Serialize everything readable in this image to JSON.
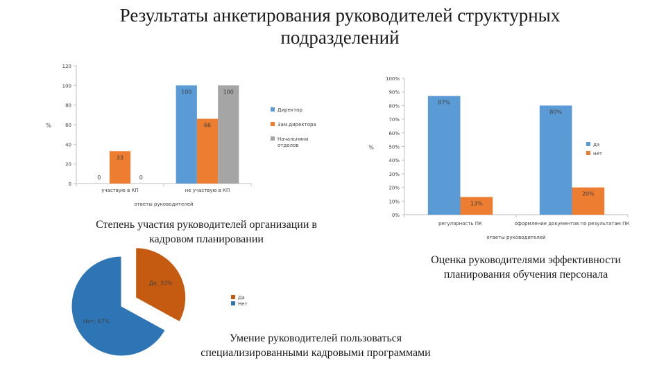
{
  "title_lines": [
    "Результаты анкетирования руководителей структурных",
    "подразделений"
  ],
  "captions": {
    "chart1": [
      "Степень участия руководителей организации в",
      "кадровом планировании"
    ],
    "chart2": [
      "Оценка руководителями эффективности",
      "планирования обучения персонала"
    ],
    "chart3": [
      "Умение руководителей пользоваться",
      "специализированными кадровыми программами"
    ]
  },
  "chart_data": [
    {
      "type": "bar",
      "categories": [
        "участвую в КП",
        "не участвую в КП"
      ],
      "series": [
        {
          "name": "Директор",
          "values": [
            0,
            100
          ],
          "color": "#5B9BD5"
        },
        {
          "name": "Зам.директора",
          "values": [
            33,
            66
          ],
          "color": "#ED7D31"
        },
        {
          "name": "Начальники отделов",
          "values": [
            0,
            100
          ],
          "color": "#A5A5A5"
        }
      ],
      "data_labels": [
        [
          "0",
          "100"
        ],
        [
          "33",
          "66"
        ],
        [
          "0",
          "100"
        ]
      ],
      "ylim": [
        0,
        120
      ],
      "yticks": [
        0,
        20,
        40,
        60,
        80,
        100,
        120
      ],
      "ytick_labels": [
        "0",
        "20",
        "40",
        "60",
        "80",
        "100",
        "120"
      ],
      "xlabel": "ответы руководителей",
      "ylabel": "%",
      "legend_position": "right"
    },
    {
      "type": "bar",
      "categories": [
        "регулярность ПК",
        "оформление документов по результатам ПК"
      ],
      "series": [
        {
          "name": "да",
          "values": [
            87,
            80
          ],
          "color": "#5B9BD5"
        },
        {
          "name": "нет",
          "values": [
            13,
            20
          ],
          "color": "#ED7D31"
        }
      ],
      "data_labels": [
        [
          "87%",
          "80%"
        ],
        [
          "13%",
          "20%"
        ]
      ],
      "ylim": [
        0,
        100
      ],
      "yticks": [
        0,
        10,
        20,
        30,
        40,
        50,
        60,
        70,
        80,
        90,
        100
      ],
      "ytick_labels": [
        "0%",
        "10%",
        "20%",
        "30%",
        "40%",
        "50%",
        "60%",
        "70%",
        "80%",
        "90%",
        "100%"
      ],
      "xlabel": "ответы руководителей",
      "ylabel": "%",
      "legend_position": "right"
    },
    {
      "type": "pie",
      "slices": [
        {
          "name": "Да",
          "value": 33,
          "label": "Да; 33%",
          "color": "#C55A11",
          "exploded": true
        },
        {
          "name": "Нет",
          "value": 67,
          "label": "Нет; 67%",
          "color": "#2E75B6",
          "exploded": false
        }
      ],
      "legend_position": "right"
    }
  ]
}
